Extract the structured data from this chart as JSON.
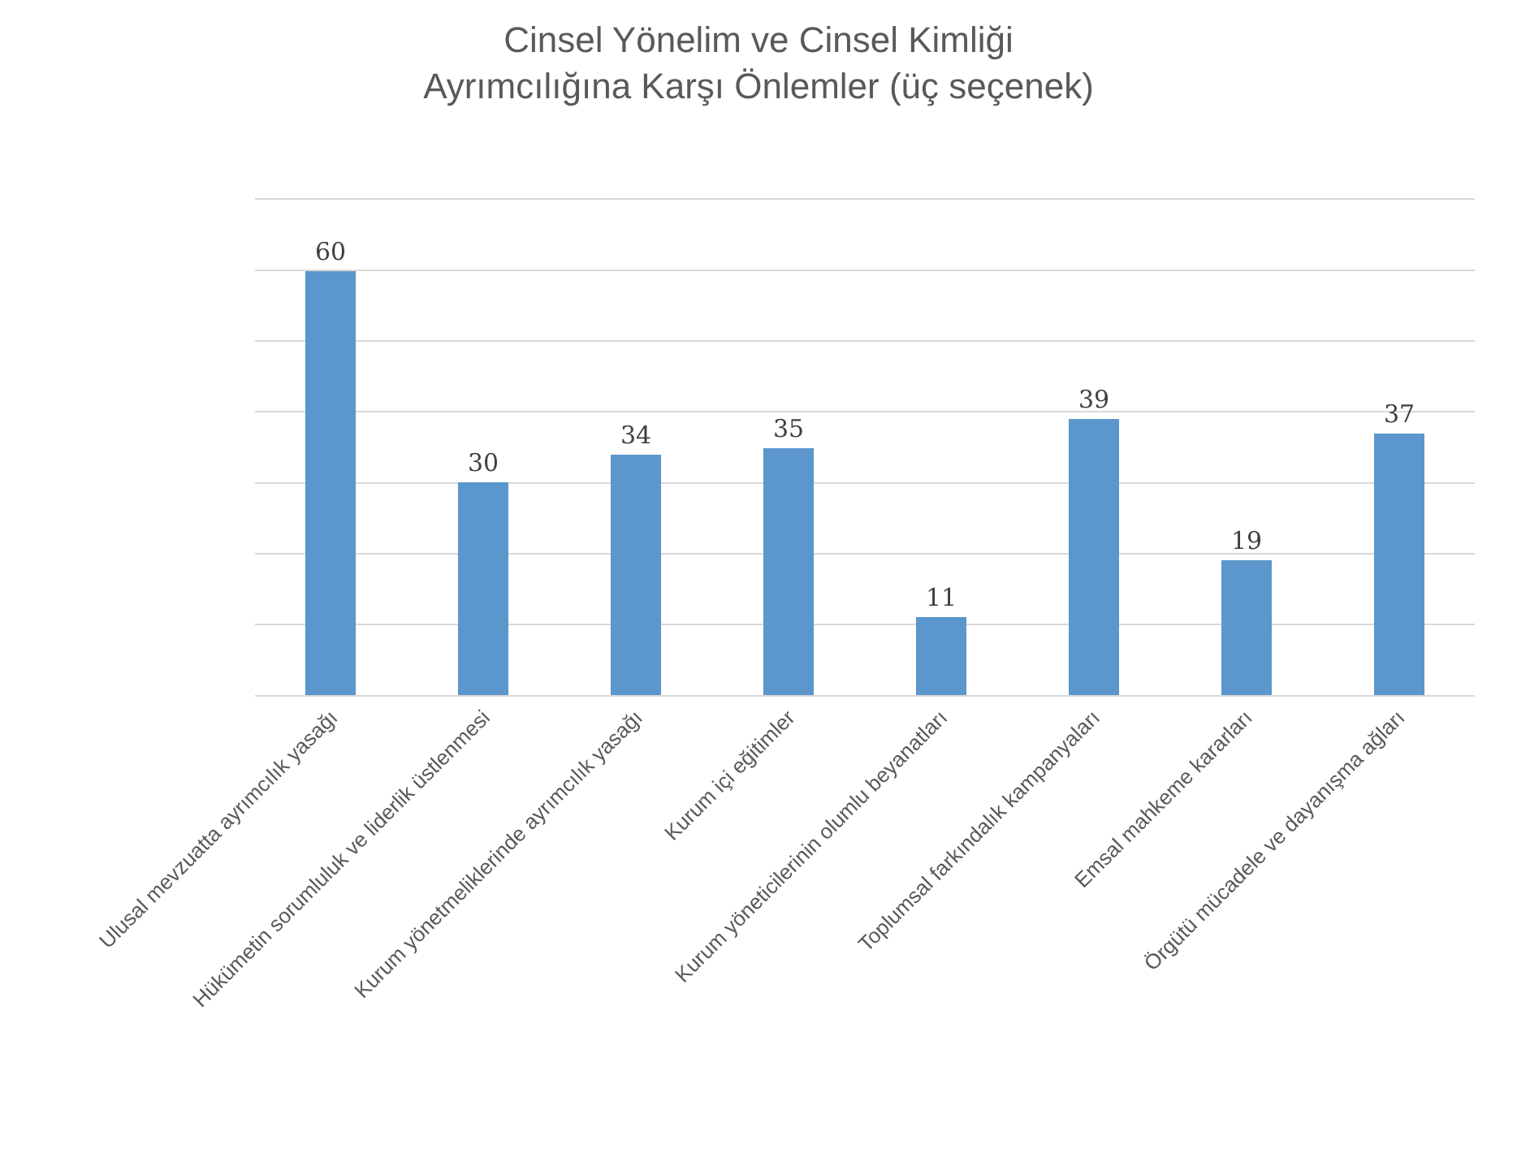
{
  "chart_data": {
    "type": "bar",
    "title": "Cinsel Yönelim ve Cinsel Kimliği\nAyrımcılığına Karşı Önlemler (üç seçenek)",
    "categories": [
      "Ulusal mevzuatta ayrımcılık yasağı",
      "Hükümetin sorumluluk ve liderlik üstlenmesi",
      "Kurum yönetmeliklerinde ayrımcılık yasağı",
      "Kurum içi eğitimler",
      "Kurum yöneticilerinin olumlu beyanatları",
      "Toplumsal farkındalık kampanyaları",
      "Emsal mahkeme kararları",
      "Örgütü mücadele ve dayanışma ağları"
    ],
    "values": [
      60,
      30,
      34,
      35,
      11,
      39,
      19,
      37
    ],
    "color": "#5b96cc",
    "ylim": [
      0,
      70
    ],
    "yticks": [
      {
        "value": 0,
        "label": null
      },
      {
        "value": 10,
        "label": null
      },
      {
        "value": 20,
        "label": null
      },
      {
        "value": 30,
        "label": null
      },
      {
        "value": 40,
        "label": null
      },
      {
        "value": 50,
        "label": null
      },
      {
        "value": 60,
        "label": null
      },
      {
        "value": 70,
        "label": null
      }
    ],
    "grid": "y",
    "tick_labels": "x",
    "data_labels": true
  }
}
